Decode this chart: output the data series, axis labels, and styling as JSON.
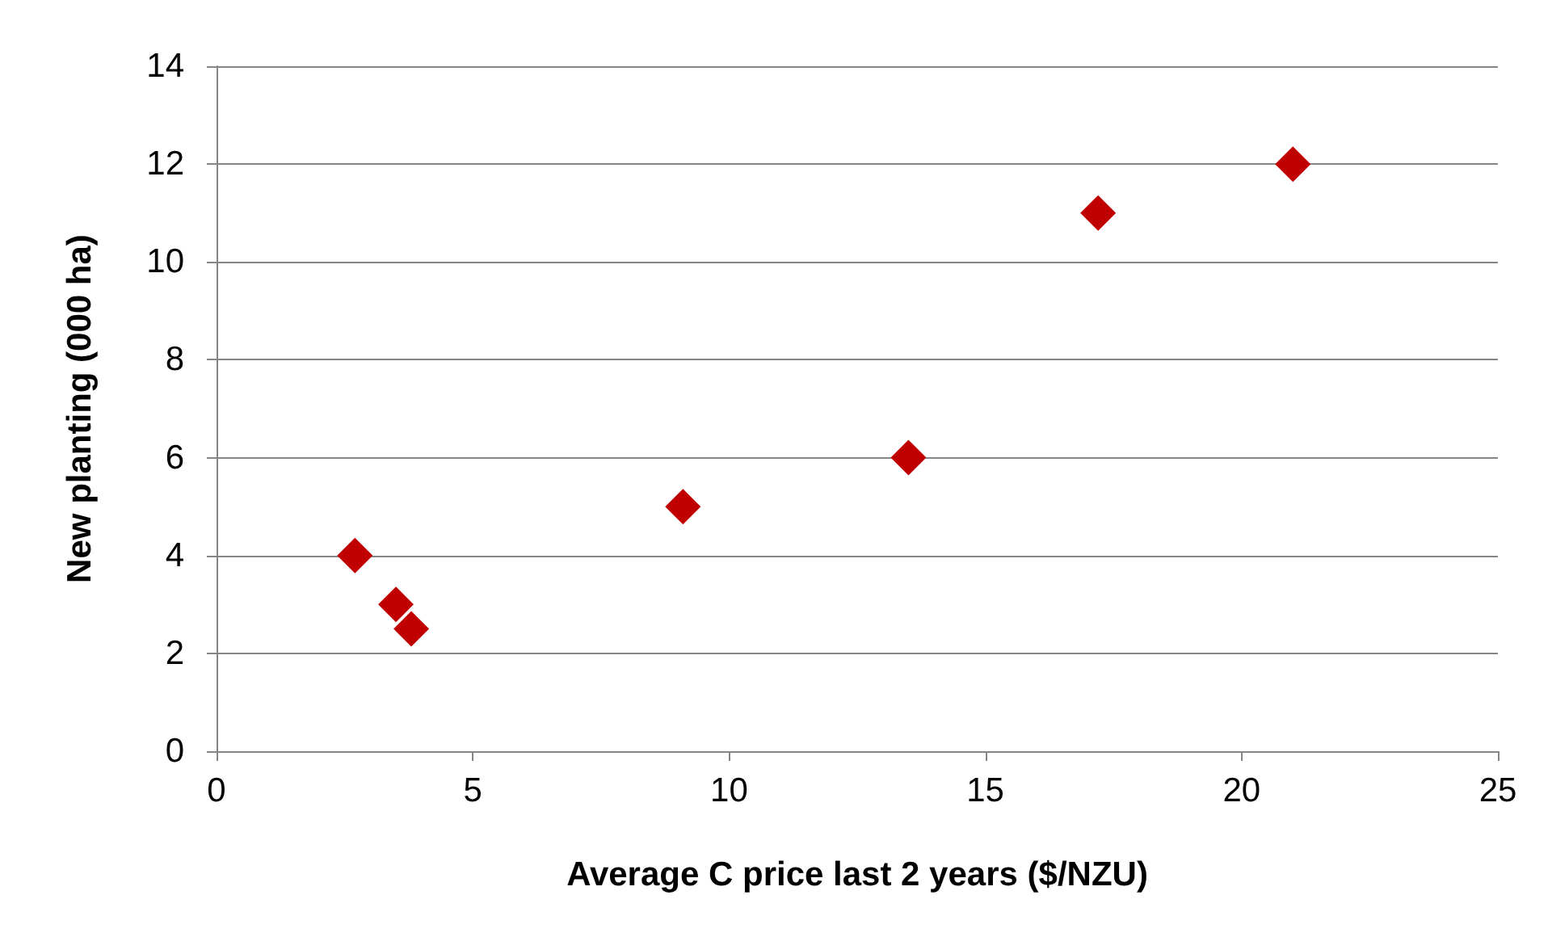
{
  "chart_data": {
    "type": "scatter",
    "xlabel": "Average C price last 2 years ($/NZU)",
    "ylabel": "New planting (000 ha)",
    "x": [
      2.7,
      3.5,
      3.8,
      9.1,
      13.5,
      17.2,
      21.0
    ],
    "values": [
      4,
      3,
      2.5,
      5,
      6,
      11,
      12
    ],
    "color": "#c00000",
    "marker": "diamond",
    "xlim": [
      0,
      25
    ],
    "xticks": [
      0,
      5,
      10,
      15,
      20,
      25
    ],
    "ylim": [
      0,
      14
    ],
    "yticks": [
      0,
      2,
      4,
      6,
      8,
      10,
      12,
      14
    ],
    "grid": "y"
  }
}
